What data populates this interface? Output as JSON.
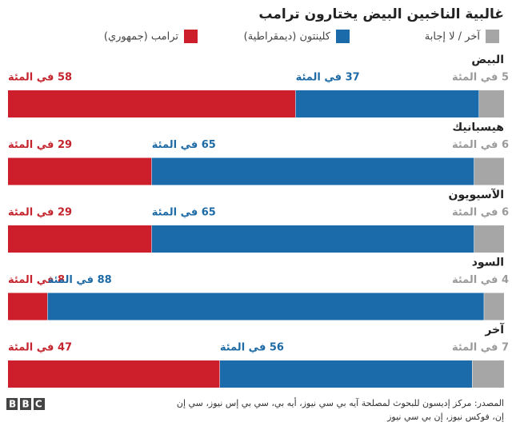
{
  "chart_data": {
    "type": "bar",
    "orientation": "horizontal",
    "stacked": true,
    "title": "غالبية الناخبين البيض يختارون ترامب",
    "categories": [
      "البيض",
      "هيسبانيك",
      "الآسيويون",
      "السود",
      "آخر"
    ],
    "series": [
      {
        "name": "ترامب (جمهوري)",
        "color": "#cc1f2b",
        "label_color": "#c4242d",
        "values": [
          58,
          29,
          29,
          8,
          47
        ],
        "value_labels": [
          "58 في المئة",
          "29 في المئة",
          "29 في المئة",
          "8 في المئة",
          "47 في المئة"
        ]
      },
      {
        "name": "كلينتون (ديمقراطية)",
        "color": "#1b6bab",
        "label_color": "#1d6aa5",
        "values": [
          37,
          65,
          65,
          88,
          56
        ],
        "value_labels": [
          "37 في المئة",
          "65 في المئة",
          "65 في المئة",
          "88 في المئة",
          "56 في المئة"
        ]
      },
      {
        "name": "آخر / لا إجابة",
        "color": "#a6a6a6",
        "label_color": "#9a9a9a",
        "values": [
          5,
          6,
          6,
          4,
          7
        ],
        "value_labels": [
          "5 في المئة",
          "6 في المئة",
          "6 في المئة",
          "4 في المئة",
          "7 في المئة"
        ]
      }
    ],
    "source": [
      "المصدر: مركز إديسون للبحوث لمصلحة آيه بي سي نيوز، أيه بي، سي بي إس نيوز، سي إن",
      "إن، فوكس نيوز، إن بي سي نيوز"
    ],
    "logo": "BBC"
  }
}
